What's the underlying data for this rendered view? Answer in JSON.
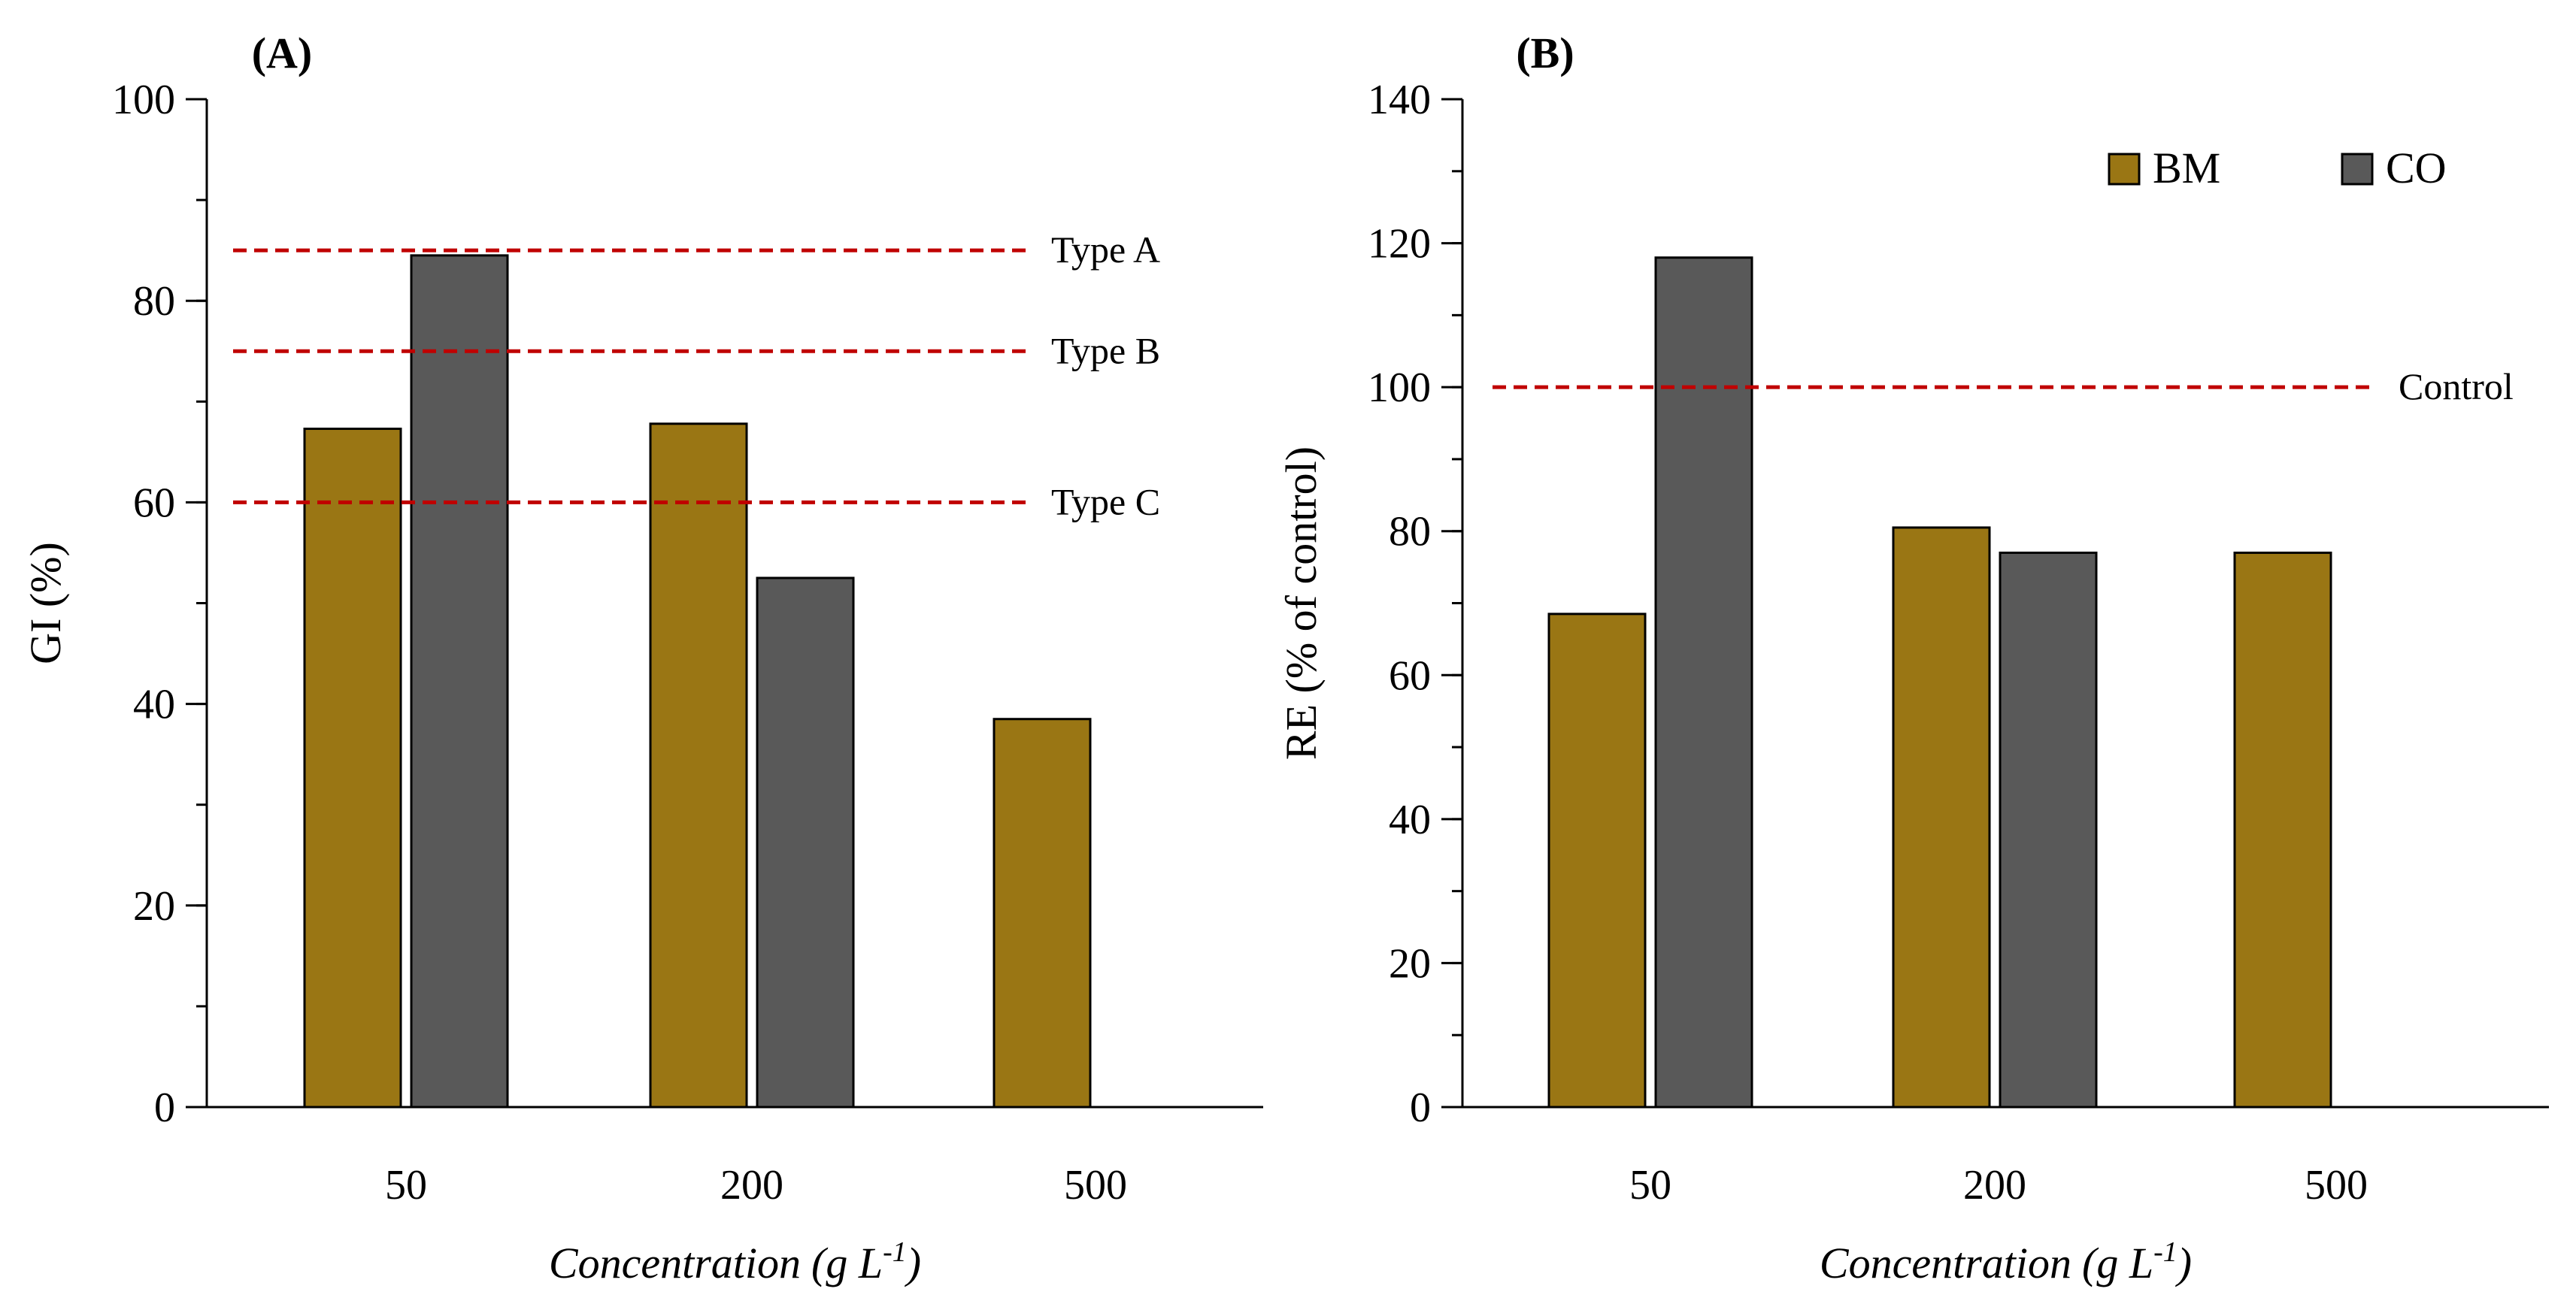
{
  "chart_data": [
    {
      "type": "bar",
      "panel_label": "(A)",
      "categories": [
        "50",
        "200",
        "500"
      ],
      "series": [
        {
          "name": "BM",
          "values": [
            67.3,
            67.8,
            38.5
          ]
        },
        {
          "name": "CO",
          "values": [
            84.5,
            52.5,
            null
          ]
        }
      ],
      "xlabel": "Concentration",
      "xlabel_unit": "(g L",
      "xlabel_unit_exp": "-1",
      "xlabel_unit_close": ")",
      "ylabel": "GI (%)",
      "ylim": [
        0,
        100
      ],
      "yticks": [
        0,
        20,
        40,
        60,
        80,
        100
      ],
      "ytick_labels": [
        "0",
        "20",
        "40",
        "60",
        "80",
        "100"
      ],
      "minor_step": 10,
      "reference_lines": [
        {
          "value": 85,
          "label": "Type A"
        },
        {
          "value": 75,
          "label": "Type B"
        },
        {
          "value": 60,
          "label": "Type C"
        }
      ],
      "legend": null
    },
    {
      "type": "bar",
      "panel_label": "(B)",
      "categories": [
        "50",
        "200",
        "500"
      ],
      "series": [
        {
          "name": "BM",
          "values": [
            68.5,
            80.5,
            77
          ]
        },
        {
          "name": "CO",
          "values": [
            118,
            77,
            null
          ]
        }
      ],
      "xlabel": "Concentration",
      "xlabel_unit": "(g L",
      "xlabel_unit_exp": "-1",
      "xlabel_unit_close": ")",
      "ylabel": "RE (% of control)",
      "ylim": [
        0,
        140
      ],
      "yticks": [
        0,
        20,
        40,
        60,
        80,
        100,
        120,
        140
      ],
      "ytick_labels": [
        "0",
        "20",
        "40",
        "60",
        "80",
        "100",
        "120",
        "140"
      ],
      "minor_step": 10,
      "reference_lines": [
        {
          "value": 100,
          "label": "Control"
        }
      ],
      "legend": "top-right"
    }
  ],
  "colors": {
    "BM": "#9a7614",
    "CO": "#595959",
    "reference_line": "#c00000",
    "axis": "#000000"
  }
}
